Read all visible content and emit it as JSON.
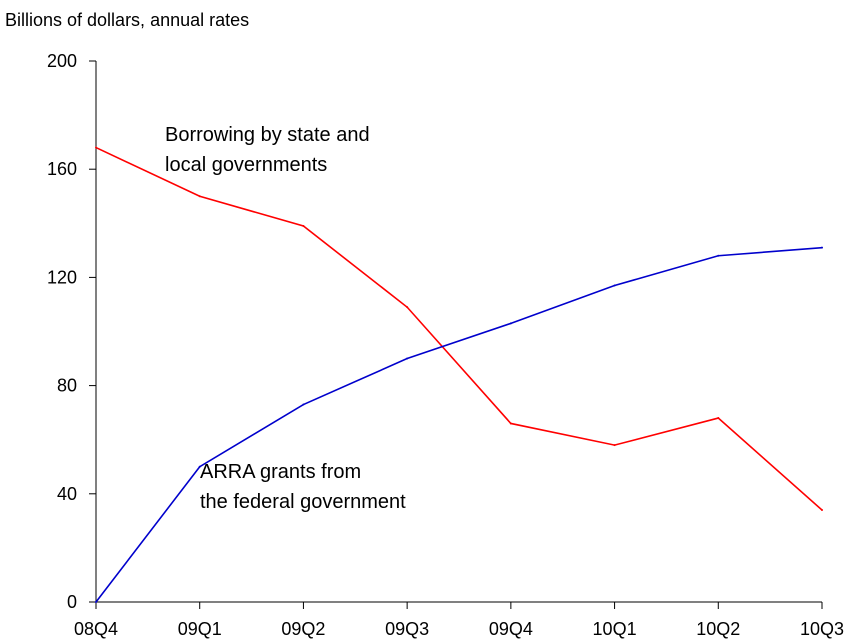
{
  "chart_data": {
    "type": "line",
    "units_label": "Billions of dollars, annual rates",
    "categories": [
      "08Q4",
      "09Q1",
      "09Q2",
      "09Q3",
      "09Q4",
      "10Q1",
      "10Q2",
      "10Q3"
    ],
    "ylim": [
      0,
      200
    ],
    "yticks": [
      0,
      40,
      80,
      120,
      160,
      200
    ],
    "grid": false,
    "legend": "none",
    "series": [
      {
        "name": "Borrowing by state and local governments",
        "label_lines": [
          "Borrowing by state and",
          "local governments"
        ],
        "color": "#ff0000",
        "values": [
          168,
          150,
          139,
          109,
          66,
          58,
          68,
          34
        ]
      },
      {
        "name": "ARRA grants from the federal government",
        "label_lines": [
          "ARRA grants from",
          "the federal government"
        ],
        "color": "#0000cc",
        "values": [
          0,
          50,
          73,
          90,
          103,
          117,
          128,
          131
        ]
      }
    ]
  }
}
